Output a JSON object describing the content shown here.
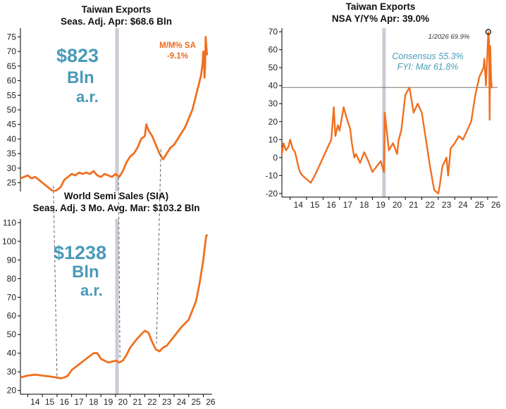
{
  "colors": {
    "series": "#f07020",
    "accent_text": "#4a9ab8",
    "band": "#c9ccd6",
    "refline": "#777777"
  },
  "chart_data": [
    {
      "id": "tw-level",
      "type": "line",
      "title": "Taiwan Exports",
      "subtitle": "Seas. Adj.  Apr: $68.6 Bln",
      "big_label": [
        "$823",
        "Bln",
        "a.r."
      ],
      "annotation": [
        "M/M% SA",
        "-9.1%"
      ],
      "x_range": [
        2013.5,
        2026.6
      ],
      "ylim": [
        22,
        78
      ],
      "y_ticks": [
        25,
        30,
        35,
        40,
        45,
        50,
        55,
        60,
        65,
        70,
        75
      ],
      "x_ticks": [],
      "shaded_x": 2020.1,
      "series": [
        {
          "x": [
            2013.5,
            2013.75,
            2014.0,
            2014.25,
            2014.5,
            2014.75,
            2015.0,
            2015.25,
            2015.5,
            2015.75,
            2016.0,
            2016.25,
            2016.5,
            2016.75,
            2017.0,
            2017.25,
            2017.5,
            2017.75,
            2018.0,
            2018.25,
            2018.5,
            2018.75,
            2019.0,
            2019.25,
            2019.5,
            2019.75,
            2020.0,
            2020.25,
            2020.5,
            2020.75,
            2021.0,
            2021.25,
            2021.5,
            2021.75,
            2022.0,
            2022.1,
            2022.25,
            2022.5,
            2022.75,
            2023.0,
            2023.25,
            2023.5,
            2023.75,
            2024.0,
            2024.25,
            2024.5,
            2024.75,
            2025.0,
            2025.25,
            2025.5,
            2025.75,
            2025.85,
            2025.95,
            2026.0,
            2026.04,
            2026.08,
            2026.12,
            2026.16,
            2026.2,
            2026.25
          ],
          "y": [
            26.5,
            27,
            27.5,
            26.5,
            27,
            26,
            25,
            24,
            23,
            22,
            22.5,
            23.5,
            26,
            27,
            28,
            27.5,
            28.5,
            28,
            28.5,
            28,
            29,
            27.5,
            27,
            28,
            27.5,
            27,
            28,
            27,
            29,
            32,
            34,
            35,
            37,
            40,
            41,
            45,
            43,
            41,
            38,
            35,
            33,
            35,
            37,
            38,
            40,
            42,
            44,
            47,
            50,
            55,
            60,
            62,
            66,
            70,
            68,
            61,
            65,
            75,
            72,
            69
          ]
        }
      ]
    },
    {
      "id": "semi-sales",
      "type": "line",
      "title": "World Semi Sales (SIA)",
      "subtitle": "Seas. Adj.  3 Mo. Avg.  Mar: $103.2 Bln",
      "big_label": [
        "$1238",
        "Bln",
        "a.r."
      ],
      "annotation": [],
      "x_range": [
        2013.5,
        2026.6
      ],
      "ylim": [
        18,
        112
      ],
      "y_ticks": [
        20,
        30,
        40,
        50,
        60,
        70,
        80,
        90,
        100,
        110
      ],
      "x_ticks": [
        "14",
        "15",
        "16",
        "17",
        "18",
        "19",
        "20",
        "21",
        "22",
        "23",
        "24",
        "25",
        "26"
      ],
      "shaded_x": 2020.1,
      "series": [
        {
          "x": [
            2013.5,
            2014.0,
            2014.5,
            2015.0,
            2015.5,
            2016.0,
            2016.25,
            2016.5,
            2016.75,
            2017.0,
            2017.5,
            2018.0,
            2018.5,
            2018.75,
            2019.0,
            2019.5,
            2020.0,
            2020.25,
            2020.5,
            2020.75,
            2021.0,
            2021.5,
            2022.0,
            2022.25,
            2022.5,
            2022.75,
            2023.0,
            2023.25,
            2023.5,
            2024.0,
            2024.5,
            2025.0,
            2025.5,
            2025.75,
            2026.0,
            2026.1,
            2026.2,
            2026.25
          ],
          "y": [
            27,
            28,
            28.5,
            28,
            27.5,
            27,
            26.5,
            27,
            28,
            31,
            34,
            37,
            40,
            40,
            37,
            35,
            36,
            35,
            36,
            39,
            43,
            48,
            52,
            51,
            46,
            42,
            41,
            43,
            44,
            49,
            54,
            58,
            68,
            78,
            90,
            97,
            103,
            103.2
          ]
        }
      ]
    },
    {
      "id": "tw-yoy",
      "type": "line",
      "title": "Taiwan Exports",
      "subtitle": "NSA  Y/Y%  Apr: 39.0%",
      "annotation": [
        "Consensus 55.3%",
        "FYI: Mar 61.8%"
      ],
      "point_label": "1/2026 69.9%",
      "x_range": [
        2013.5,
        2026.6
      ],
      "ylim": [
        -22,
        72
      ],
      "y_ticks": [
        -20,
        -10,
        0,
        10,
        20,
        30,
        40,
        50,
        60,
        70
      ],
      "x_ticks": [
        "14",
        "15",
        "16",
        "17",
        "18",
        "19",
        "20",
        "21",
        "22",
        "23",
        "24",
        "25",
        "26"
      ],
      "shaded_x": 2019.7,
      "ref_y": 39,
      "series": [
        {
          "x": [
            2013.5,
            2013.6,
            2013.75,
            2013.9,
            2014.0,
            2014.15,
            2014.3,
            2014.5,
            2014.6,
            2014.75,
            2015.0,
            2015.25,
            2015.5,
            2015.75,
            2016.0,
            2016.25,
            2016.5,
            2016.65,
            2016.75,
            2016.9,
            2017.0,
            2017.1,
            2017.25,
            2017.5,
            2017.65,
            2017.75,
            2017.9,
            2018.0,
            2018.25,
            2018.5,
            2018.75,
            2019.0,
            2019.25,
            2019.5,
            2019.6,
            2019.7,
            2019.75,
            2020.0,
            2020.25,
            2020.5,
            2020.6,
            2020.75,
            2021.0,
            2021.25,
            2021.5,
            2021.75,
            2022.0,
            2022.25,
            2022.5,
            2022.75,
            2023.0,
            2023.1,
            2023.25,
            2023.5,
            2023.6,
            2023.75,
            2024.0,
            2024.25,
            2024.5,
            2024.75,
            2025.0,
            2025.25,
            2025.5,
            2025.75,
            2025.8,
            2025.9,
            2026.0,
            2026.04,
            2026.08,
            2026.12,
            2026.16,
            2026.2,
            2026.25
          ],
          "y": [
            2,
            8,
            4,
            6,
            10,
            5,
            3,
            -5,
            -8,
            -10,
            -12,
            -14,
            -10,
            -5,
            0,
            5,
            10,
            28,
            12,
            18,
            15,
            20,
            28,
            20,
            16,
            8,
            0,
            2,
            -3,
            3,
            -2,
            -8,
            -5,
            -2,
            -5,
            -8,
            25,
            4,
            8,
            2,
            10,
            15,
            35,
            39,
            25,
            30,
            25,
            10,
            -5,
            -18,
            -20,
            -15,
            -5,
            0,
            -10,
            5,
            8,
            12,
            10,
            15,
            20,
            35,
            45,
            50,
            55,
            40,
            62,
            69.9,
            65,
            21,
            62,
            45,
            39
          ]
        }
      ]
    }
  ]
}
